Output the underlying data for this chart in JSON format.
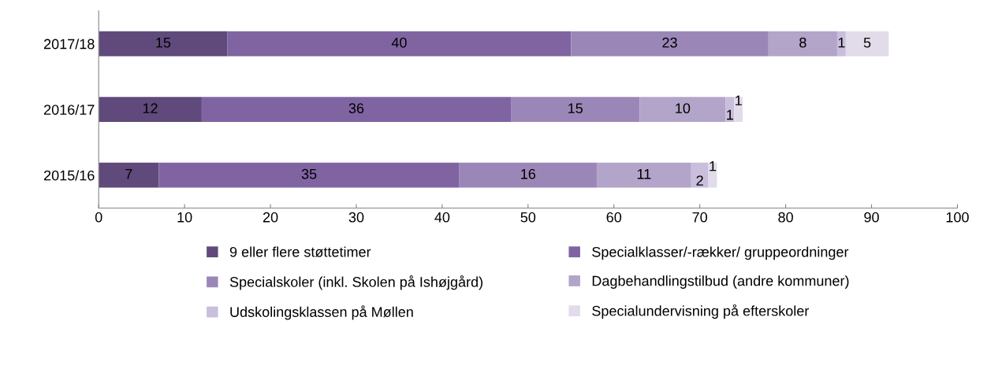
{
  "chart_data": {
    "type": "bar",
    "orientation": "horizontal",
    "stacked": true,
    "data_labels": true,
    "legend": "bottom",
    "grid": false,
    "categories": [
      "2017/18",
      "2016/17",
      "2015/16"
    ],
    "xlim": [
      0,
      100
    ],
    "xticks": [
      0,
      10,
      20,
      30,
      40,
      50,
      60,
      70,
      80,
      90,
      100
    ],
    "series": [
      {
        "name": "9 eller flere støttetimer",
        "color": "#5f4a7b",
        "values": [
          15,
          12,
          7
        ]
      },
      {
        "name": "Specialklasser/-rækker/ gruppeordninger",
        "color": "#8064a2",
        "values": [
          40,
          36,
          35
        ]
      },
      {
        "name": "Specialskoler (inkl. Skolen på Ishøjgård)",
        "color": "#9b87b7",
        "values": [
          23,
          15,
          16
        ]
      },
      {
        "name": "Dagbehandlingstilbud (andre kommuner)",
        "color": "#b3a4c9",
        "values": [
          8,
          10,
          11
        ]
      },
      {
        "name": "Udskolingsklassen på Møllen",
        "color": "#c9bedb",
        "values": [
          1,
          1,
          2
        ]
      },
      {
        "name": "Specialundervisning på efterskoler",
        "color": "#e2dcea",
        "values": [
          5,
          1,
          1
        ]
      }
    ]
  }
}
